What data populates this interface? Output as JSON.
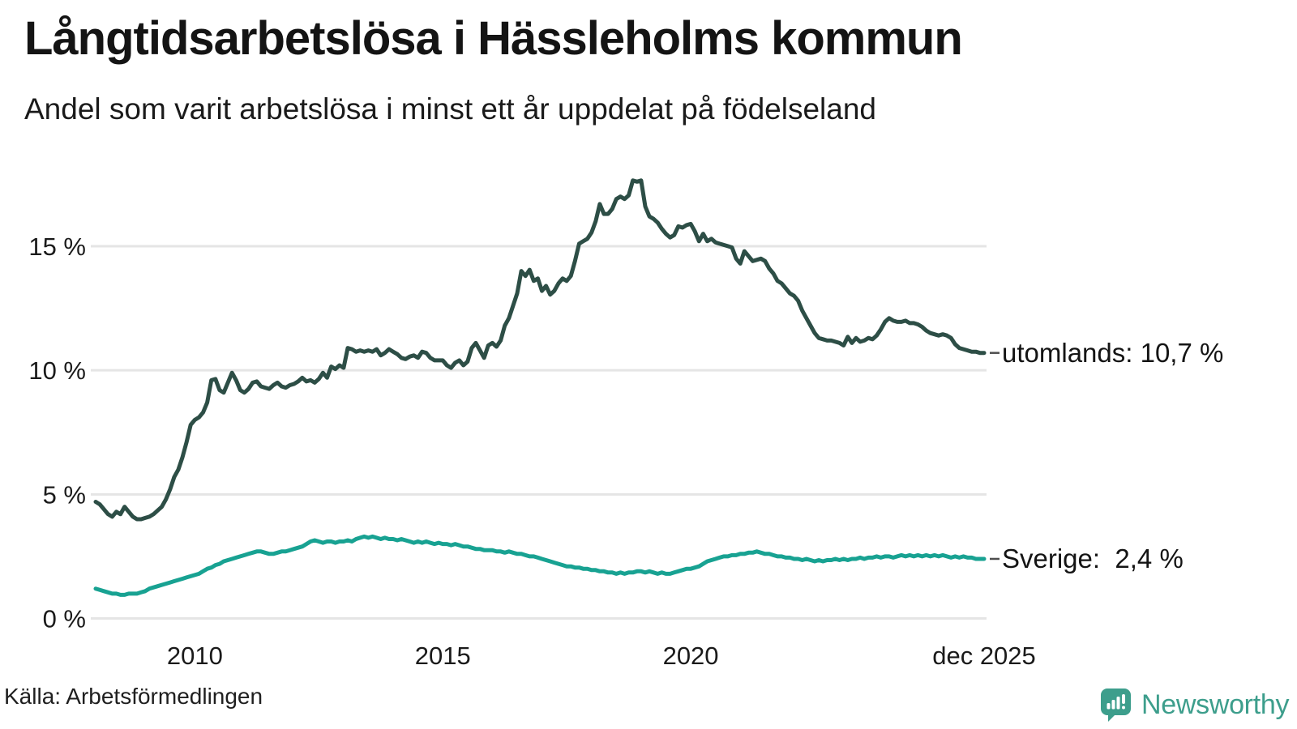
{
  "header": {
    "title": "Långtidsarbetslösa i Hässleholms kommun",
    "subtitle": "Andel som varit arbetslösa i minst ett år uppdelat på födelseland"
  },
  "chart_data": {
    "type": "line",
    "title": "Långtidsarbetslösa i Hässleholms kommun",
    "subtitle": "Andel som varit arbetslösa i minst ett år uppdelat på födelseland",
    "x_unit": "month",
    "x_start": "2008-01",
    "x_end": "2025-12",
    "ylim": [
      0,
      17.9
    ],
    "grid": "horizontal",
    "legend_position": "end-labels-right",
    "y_ticks": [
      {
        "label": "0 %",
        "value": 0
      },
      {
        "label": "5 %",
        "value": 5
      },
      {
        "label": "10 %",
        "value": 10
      },
      {
        "label": "15 %",
        "value": 15
      }
    ],
    "x_ticks": [
      {
        "label": "2010",
        "month_index": 24
      },
      {
        "label": "2015",
        "month_index": 84
      },
      {
        "label": "2020",
        "month_index": 144
      },
      {
        "label": "dec 2025",
        "month_index": 215
      }
    ],
    "series": [
      {
        "name": "utomlands",
        "end_label": "utomlands: 10,7 %",
        "current_value": "10,7 %",
        "color": "#2d4e46",
        "values": [
          4.7,
          4.6,
          4.4,
          4.2,
          4.1,
          4.3,
          4.2,
          4.5,
          4.3,
          4.1,
          4.0,
          4.0,
          4.05,
          4.1,
          4.2,
          4.35,
          4.5,
          4.8,
          5.2,
          5.7,
          6.0,
          6.5,
          7.1,
          7.8,
          8.0,
          8.1,
          8.3,
          8.7,
          9.6,
          9.65,
          9.2,
          9.1,
          9.5,
          9.9,
          9.6,
          9.2,
          9.1,
          9.25,
          9.5,
          9.55,
          9.35,
          9.3,
          9.25,
          9.4,
          9.5,
          9.35,
          9.3,
          9.4,
          9.45,
          9.55,
          9.7,
          9.55,
          9.6,
          9.5,
          9.65,
          9.9,
          9.7,
          10.15,
          10.05,
          10.2,
          10.1,
          10.9,
          10.85,
          10.75,
          10.8,
          10.75,
          10.8,
          10.75,
          10.85,
          10.6,
          10.7,
          10.85,
          10.75,
          10.65,
          10.5,
          10.45,
          10.55,
          10.6,
          10.5,
          10.75,
          10.7,
          10.5,
          10.4,
          10.4,
          10.4,
          10.2,
          10.1,
          10.3,
          10.4,
          10.2,
          10.35,
          10.9,
          11.1,
          10.8,
          10.5,
          11.0,
          11.1,
          10.95,
          11.2,
          11.8,
          12.1,
          12.6,
          13.1,
          14.0,
          13.8,
          14.05,
          13.6,
          13.7,
          13.2,
          13.4,
          13.05,
          13.2,
          13.5,
          13.7,
          13.6,
          13.8,
          14.4,
          15.1,
          15.2,
          15.3,
          15.55,
          16.0,
          16.7,
          16.3,
          16.3,
          16.5,
          16.9,
          17.0,
          16.9,
          17.05,
          17.65,
          17.6,
          17.65,
          16.6,
          16.2,
          16.1,
          15.95,
          15.7,
          15.5,
          15.35,
          15.45,
          15.8,
          15.75,
          15.85,
          15.9,
          15.6,
          15.2,
          15.5,
          15.2,
          15.3,
          15.15,
          15.1,
          15.05,
          15.0,
          14.95,
          14.5,
          14.3,
          14.8,
          14.6,
          14.4,
          14.45,
          14.5,
          14.4,
          14.1,
          13.9,
          13.6,
          13.5,
          13.3,
          13.1,
          13.0,
          12.8,
          12.4,
          12.1,
          11.8,
          11.5,
          11.3,
          11.25,
          11.2,
          11.2,
          11.15,
          11.1,
          11.0,
          11.35,
          11.1,
          11.3,
          11.15,
          11.2,
          11.3,
          11.25,
          11.4,
          11.65,
          11.95,
          12.1,
          12.0,
          11.95,
          11.95,
          12.0,
          11.9,
          11.9,
          11.85,
          11.75,
          11.6,
          11.5,
          11.45,
          11.4,
          11.45,
          11.4,
          11.3,
          11.05,
          10.9,
          10.85,
          10.8,
          10.75,
          10.75,
          10.7,
          10.7
        ]
      },
      {
        "name": "Sverige",
        "end_label": "Sverige:  2,4 %",
        "current_value": "2,4 %",
        "color": "#18a292",
        "values": [
          1.2,
          1.15,
          1.1,
          1.05,
          1.0,
          1.0,
          0.95,
          0.95,
          1.0,
          1.0,
          1.0,
          1.05,
          1.1,
          1.2,
          1.25,
          1.3,
          1.35,
          1.4,
          1.45,
          1.5,
          1.55,
          1.6,
          1.65,
          1.7,
          1.75,
          1.8,
          1.9,
          2.0,
          2.05,
          2.15,
          2.2,
          2.3,
          2.35,
          2.4,
          2.45,
          2.5,
          2.55,
          2.6,
          2.65,
          2.7,
          2.7,
          2.65,
          2.6,
          2.6,
          2.65,
          2.7,
          2.7,
          2.75,
          2.8,
          2.85,
          2.9,
          3.0,
          3.1,
          3.15,
          3.1,
          3.05,
          3.1,
          3.1,
          3.05,
          3.1,
          3.1,
          3.15,
          3.1,
          3.2,
          3.25,
          3.3,
          3.25,
          3.3,
          3.25,
          3.2,
          3.25,
          3.2,
          3.2,
          3.15,
          3.2,
          3.15,
          3.1,
          3.05,
          3.1,
          3.05,
          3.1,
          3.05,
          3.0,
          3.05,
          3.0,
          3.0,
          2.95,
          3.0,
          2.95,
          2.9,
          2.9,
          2.85,
          2.8,
          2.8,
          2.75,
          2.75,
          2.75,
          2.7,
          2.7,
          2.65,
          2.7,
          2.65,
          2.6,
          2.6,
          2.55,
          2.5,
          2.5,
          2.45,
          2.4,
          2.35,
          2.3,
          2.25,
          2.2,
          2.15,
          2.1,
          2.1,
          2.05,
          2.05,
          2.0,
          2.0,
          1.95,
          1.95,
          1.9,
          1.9,
          1.85,
          1.85,
          1.8,
          1.85,
          1.8,
          1.85,
          1.85,
          1.9,
          1.9,
          1.85,
          1.9,
          1.85,
          1.8,
          1.85,
          1.8,
          1.8,
          1.85,
          1.9,
          1.95,
          2.0,
          2.0,
          2.05,
          2.1,
          2.2,
          2.3,
          2.35,
          2.4,
          2.45,
          2.5,
          2.5,
          2.55,
          2.55,
          2.6,
          2.6,
          2.65,
          2.65,
          2.7,
          2.65,
          2.6,
          2.6,
          2.55,
          2.5,
          2.5,
          2.45,
          2.45,
          2.4,
          2.4,
          2.35,
          2.4,
          2.35,
          2.3,
          2.35,
          2.3,
          2.35,
          2.35,
          2.4,
          2.35,
          2.4,
          2.35,
          2.4,
          2.4,
          2.45,
          2.4,
          2.45,
          2.45,
          2.5,
          2.45,
          2.5,
          2.5,
          2.45,
          2.5,
          2.55,
          2.5,
          2.55,
          2.5,
          2.55,
          2.5,
          2.55,
          2.5,
          2.55,
          2.5,
          2.55,
          2.5,
          2.45,
          2.5,
          2.45,
          2.5,
          2.45,
          2.45,
          2.4,
          2.4,
          2.4
        ]
      }
    ]
  },
  "footer": {
    "source": "Källa: Arbetsförmedlingen",
    "logo_text": "Newsworthy"
  },
  "colors": {
    "grid": "#e5e5e5",
    "leader_dash": "#4d4d4d",
    "logo": "#3d9e8c",
    "text": "#1a1a1a"
  }
}
